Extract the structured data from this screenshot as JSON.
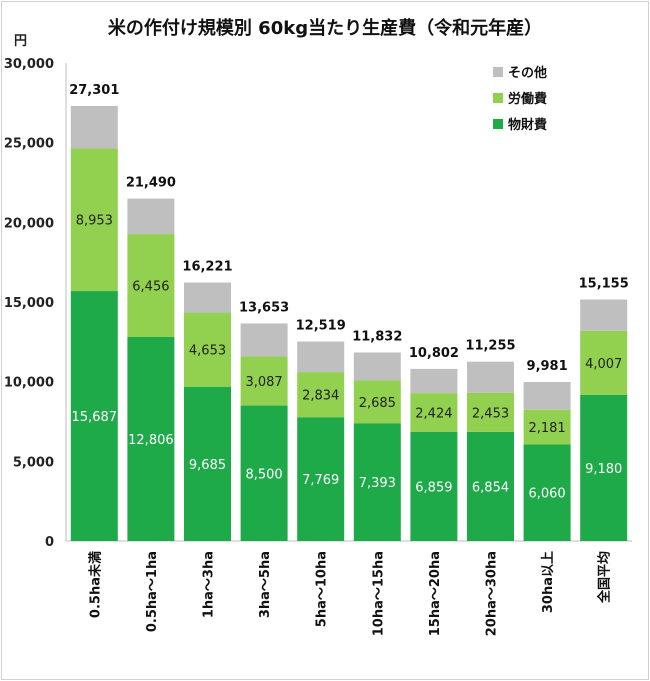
{
  "title": "米の作付け規模別 60kg当たり生産費（令和元年産）",
  "unit": "円",
  "colors": {
    "butsuzai": "#1faa4a",
    "roudou": "#92d050",
    "sonota": "#bfbfbf"
  },
  "chart_data": {
    "type": "bar",
    "stacked": true,
    "categories": [
      "0.5ha未満",
      "0.5ha～1ha",
      "1ha～3ha",
      "3ha～5ha",
      "5ha～10ha",
      "10ha～15ha",
      "15ha～20ha",
      "20ha～30ha",
      "30ha以上",
      "全国平均"
    ],
    "series": [
      {
        "name": "物財費",
        "values": [
          15687,
          12806,
          9685,
          8500,
          7769,
          7393,
          6859,
          6854,
          6060,
          9180
        ]
      },
      {
        "name": "労働費",
        "values": [
          8953,
          6456,
          4653,
          3087,
          2834,
          2685,
          2424,
          2453,
          2181,
          4007
        ]
      },
      {
        "name": "その他",
        "values": [
          2661,
          2228,
          1883,
          2066,
          1916,
          1754,
          1519,
          1948,
          1740,
          1968
        ]
      }
    ],
    "totals": [
      27301,
      21490,
      16221,
      13653,
      12519,
      11832,
      10802,
      11255,
      9981,
      15155
    ],
    "ylim": [
      0,
      30000
    ],
    "yticks": [
      0,
      5000,
      10000,
      15000,
      20000,
      25000,
      30000
    ],
    "ytick_labels": [
      "0",
      "5,000",
      "10,000",
      "15,000",
      "20,000",
      "25,000",
      "30,000"
    ],
    "legend": [
      "その他",
      "労働費",
      "物財費"
    ],
    "legend_position": "top-right",
    "grid": false
  }
}
